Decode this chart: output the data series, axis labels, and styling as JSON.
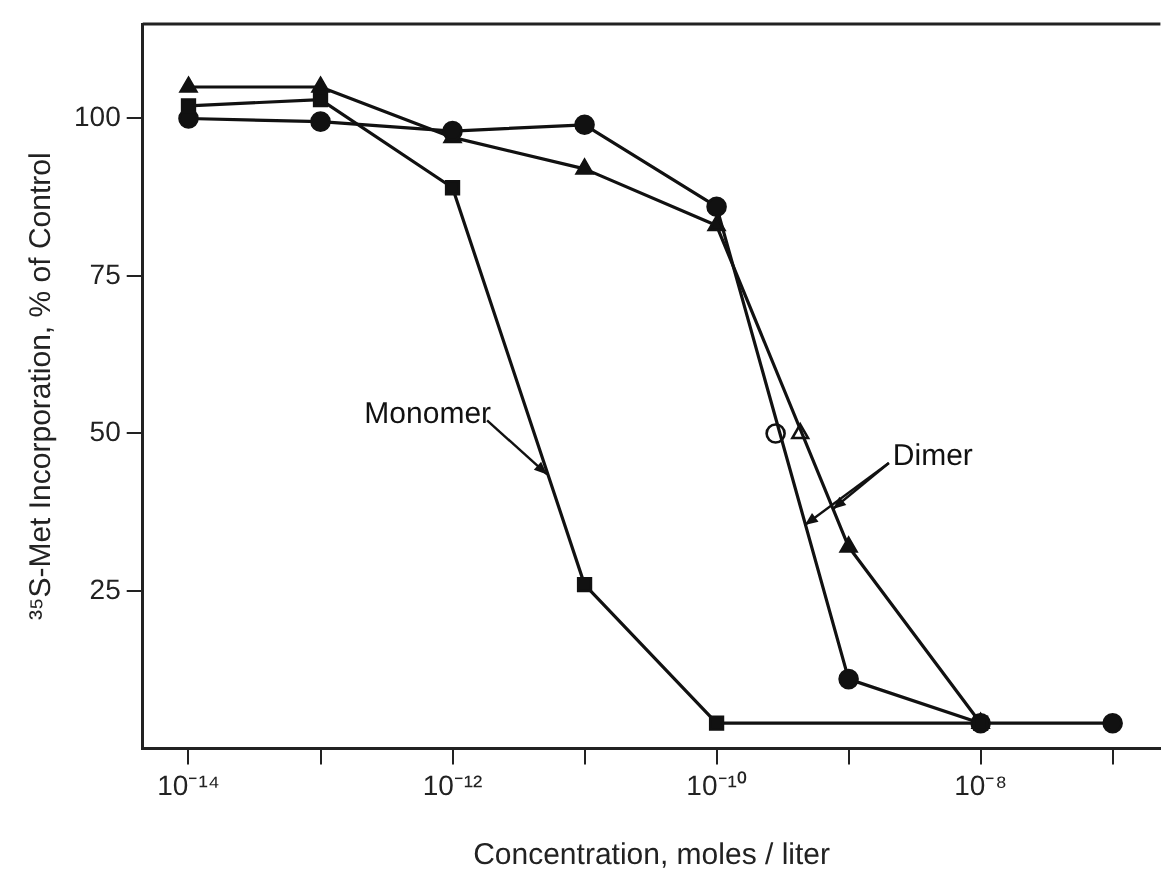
{
  "chart_data": {
    "type": "line",
    "xlabel": "Concentration, moles / liter",
    "ylabel": "³⁵S-Met Incorporation, % of Control",
    "log": "x",
    "grid": false,
    "legend": false,
    "xlim": [
      4.5e-15,
      2.3e-07
    ],
    "xticks": [
      {
        "value": 1e-14,
        "label": "10⁻¹⁴"
      },
      {
        "value": 1e-13,
        "label": null
      },
      {
        "value": 1e-12,
        "label": "10⁻¹²"
      },
      {
        "value": 1e-11,
        "label": null
      },
      {
        "value": 1e-10,
        "label": "10⁻¹⁰"
      },
      {
        "value": 1e-09,
        "label": null
      },
      {
        "value": 1e-08,
        "label": "10⁻⁸"
      },
      {
        "value": 1e-07,
        "label": null
      }
    ],
    "ylim": [
      0,
      115
    ],
    "yticks": [
      25,
      50,
      75,
      100
    ],
    "series": [
      {
        "color": "#111111",
        "marker": "square",
        "x": [
          1e-14,
          1e-13,
          1e-12,
          1e-11,
          1e-10,
          1e-08
        ],
        "values": [
          102,
          103,
          89,
          26,
          4,
          4
        ]
      },
      {
        "color": "#111111",
        "marker": "circle",
        "x": [
          1e-14,
          1e-13,
          1e-12,
          1e-11,
          1e-10,
          1e-09,
          1e-08,
          1e-07
        ],
        "values": [
          100,
          99.5,
          98,
          99,
          86,
          11,
          4,
          4
        ]
      },
      {
        "color": "#111111",
        "marker": "triangle",
        "x": [
          1e-14,
          1e-13,
          1e-12,
          1e-11,
          1e-10,
          1e-09,
          1e-08
        ],
        "values": [
          105,
          105,
          97,
          92,
          83,
          32,
          4
        ]
      },
      {
        "type": "scatter",
        "color": "#111111",
        "marker": "circle",
        "x": [
          2.8e-10
        ],
        "values": [
          50
        ]
      },
      {
        "type": "scatter",
        "color": "#111111",
        "marker": "triangle",
        "x": [
          4.3e-10
        ],
        "values": [
          50
        ]
      }
    ],
    "annotations": [
      {
        "text": "Monomer",
        "x": 5.2e-12,
        "y": 43.5
      },
      {
        "text": "Dimer",
        "x": 7.6e-10,
        "y": 38
      }
    ]
  }
}
